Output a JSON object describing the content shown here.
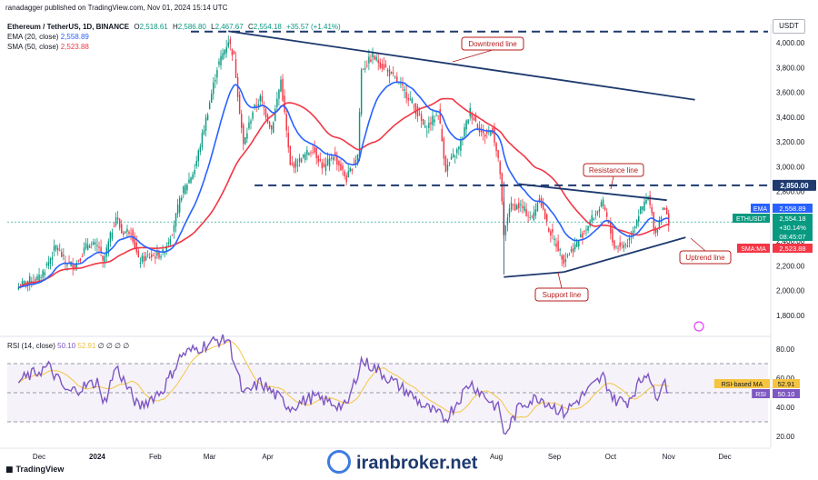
{
  "publish_line": "ranadagger published on TradingView.com, Nov 01, 2024 15:14 UTC",
  "legend": {
    "symbol": "Ethereum / TetherUS, 1D, BINANCE",
    "o_label": "O",
    "o": "2,518.61",
    "h_label": "H",
    "h": "2,586.80",
    "l_label": "L",
    "l": "2,467.67",
    "c_label": "C",
    "c": "2,554.18",
    "change": "+35.57 (+1.41%)",
    "ema_label": "EMA (20, close)",
    "ema": "2,558.89",
    "sma_label": "SMA (50, close)",
    "sma": "2,523.88"
  },
  "rsi_legend": {
    "label": "RSI (14, close)",
    "v1": "50.10",
    "v2": "52.91",
    "rest": "∅ ∅ ∅ ∅"
  },
  "currency": "USDT",
  "tradingview": "TradingView",
  "watermark": "iranbroker.net",
  "colors": {
    "up": "#089981",
    "down": "#f23645",
    "ema": "#2962ff",
    "sma": "#f23645",
    "trend": "#1e3a6e",
    "rsi": "#7e57c2"
  },
  "chart_data": {
    "type": "candlestick",
    "title": "Ethereum / TetherUS, 1D, BINANCE",
    "ylabel": "USDT",
    "y_ticks": [
      1800,
      2000,
      2200,
      2400,
      2600,
      2800,
      3000,
      3200,
      3400,
      3600,
      3800,
      4000
    ],
    "y_tick_labels": [
      "1,800.00",
      "2,000.00",
      "2,200.00",
      "2,400.00",
      "2,600.00",
      "2,800.00",
      "3,000.00",
      "3,200.00",
      "3,400.00",
      "3,600.00",
      "3,800.00",
      "4,000.00"
    ],
    "x_ticks": [
      {
        "label": "Dec",
        "date": "2023-12-01"
      },
      {
        "label": "2024",
        "date": "2024-01-01"
      },
      {
        "label": "Feb",
        "date": "2024-02-01"
      },
      {
        "label": "Mar",
        "date": "2024-03-01"
      },
      {
        "label": "Apr",
        "date": "2024-04-01"
      },
      {
        "label": "Aug",
        "date": "2024-08-01"
      },
      {
        "label": "Sep",
        "date": "2024-09-01"
      },
      {
        "label": "Oct",
        "date": "2024-10-01"
      },
      {
        "label": "Nov",
        "date": "2024-11-01"
      },
      {
        "label": "Dec",
        "date": "2024-12-01"
      }
    ],
    "horizontal_lines": [
      {
        "value": 4090
      },
      {
        "value": 2850,
        "label": "2,850.00"
      }
    ],
    "trendlines": [
      {
        "name": "Downtrend line",
        "from": [
          "2024-03-11",
          4093
        ],
        "to": [
          "2024-11-15",
          3540
        ]
      },
      {
        "name": "Resistance line",
        "from": [
          "2024-08-13",
          2860
        ],
        "to": [
          "2024-10-31",
          2730
        ]
      },
      {
        "name": "Support line",
        "from": [
          "2024-08-05",
          2110
        ],
        "to": [
          "2024-09-06",
          2150
        ]
      },
      {
        "name": "Uptrend line",
        "from": [
          "2024-09-06",
          2150
        ],
        "to": [
          "2024-11-10",
          2430
        ]
      }
    ],
    "annotations": [
      {
        "text": "Downtrend line"
      },
      {
        "text": "Resistance line"
      },
      {
        "text": "Uptrend line"
      },
      {
        "text": "Support line"
      }
    ],
    "price_tags": [
      {
        "label": "EMA",
        "value": "2,558.89"
      },
      {
        "label": "ETHUSDT",
        "value": "2,554.18"
      },
      {
        "label": "",
        "value": "+30.14%"
      },
      {
        "label": "",
        "value": "08:45:07"
      },
      {
        "label": "SMA:MA",
        "value": "2,523.88"
      }
    ],
    "price_key": [
      {
        "date": "2023-11-20",
        "c": 2030
      },
      {
        "date": "2023-11-25",
        "c": 2080
      },
      {
        "date": "2023-12-01",
        "c": 2100
      },
      {
        "date": "2023-12-06",
        "c": 2230
      },
      {
        "date": "2023-12-10",
        "c": 2360
      },
      {
        "date": "2023-12-15",
        "c": 2230
      },
      {
        "date": "2023-12-20",
        "c": 2200
      },
      {
        "date": "2023-12-27",
        "c": 2380
      },
      {
        "date": "2024-01-02",
        "c": 2350
      },
      {
        "date": "2024-01-04",
        "c": 2220
      },
      {
        "date": "2024-01-11",
        "c": 2600
      },
      {
        "date": "2024-01-14",
        "c": 2470
      },
      {
        "date": "2024-01-19",
        "c": 2490
      },
      {
        "date": "2024-01-23",
        "c": 2240
      },
      {
        "date": "2024-01-28",
        "c": 2270
      },
      {
        "date": "2024-02-05",
        "c": 2300
      },
      {
        "date": "2024-02-10",
        "c": 2480
      },
      {
        "date": "2024-02-15",
        "c": 2780
      },
      {
        "date": "2024-02-22",
        "c": 2980
      },
      {
        "date": "2024-02-28",
        "c": 3380
      },
      {
        "date": "2024-03-05",
        "c": 3800
      },
      {
        "date": "2024-03-11",
        "c": 4020
      },
      {
        "date": "2024-03-14",
        "c": 3880
      },
      {
        "date": "2024-03-19",
        "c": 3170
      },
      {
        "date": "2024-03-24",
        "c": 3450
      },
      {
        "date": "2024-03-28",
        "c": 3550
      },
      {
        "date": "2024-04-03",
        "c": 3300
      },
      {
        "date": "2024-04-08",
        "c": 3700
      },
      {
        "date": "2024-04-13",
        "c": 3000
      },
      {
        "date": "2024-04-18",
        "c": 3050
      },
      {
        "date": "2024-04-25",
        "c": 3150
      },
      {
        "date": "2024-05-01",
        "c": 2980
      },
      {
        "date": "2024-05-06",
        "c": 3100
      },
      {
        "date": "2024-05-13",
        "c": 2900
      },
      {
        "date": "2024-05-19",
        "c": 3100
      },
      {
        "date": "2024-05-21",
        "c": 3780
      },
      {
        "date": "2024-05-27",
        "c": 3890
      },
      {
        "date": "2024-06-03",
        "c": 3790
      },
      {
        "date": "2024-06-10",
        "c": 3670
      },
      {
        "date": "2024-06-17",
        "c": 3520
      },
      {
        "date": "2024-06-24",
        "c": 3300
      },
      {
        "date": "2024-07-01",
        "c": 3440
      },
      {
        "date": "2024-07-05",
        "c": 2980
      },
      {
        "date": "2024-07-12",
        "c": 3150
      },
      {
        "date": "2024-07-18",
        "c": 3450
      },
      {
        "date": "2024-07-25",
        "c": 3250
      },
      {
        "date": "2024-07-30",
        "c": 3300
      },
      {
        "date": "2024-08-03",
        "c": 2950
      },
      {
        "date": "2024-08-05",
        "c": 2430
      },
      {
        "date": "2024-08-08",
        "c": 2680
      },
      {
        "date": "2024-08-14",
        "c": 2680
      },
      {
        "date": "2024-08-20",
        "c": 2580
      },
      {
        "date": "2024-08-24",
        "c": 2760
      },
      {
        "date": "2024-08-28",
        "c": 2530
      },
      {
        "date": "2024-09-06",
        "c": 2250
      },
      {
        "date": "2024-09-12",
        "c": 2360
      },
      {
        "date": "2024-09-20",
        "c": 2560
      },
      {
        "date": "2024-09-27",
        "c": 2700
      },
      {
        "date": "2024-10-03",
        "c": 2350
      },
      {
        "date": "2024-10-10",
        "c": 2380
      },
      {
        "date": "2024-10-16",
        "c": 2620
      },
      {
        "date": "2024-10-21",
        "c": 2750
      },
      {
        "date": "2024-10-25",
        "c": 2460
      },
      {
        "date": "2024-10-29",
        "c": 2680
      },
      {
        "date": "2024-11-01",
        "c": 2554
      }
    ],
    "rsi": {
      "label": "RSI (14, close)",
      "value": 50.1,
      "ma_value": 52.91,
      "y_ticks": [
        20,
        40,
        60,
        80
      ],
      "band": [
        30,
        70
      ],
      "key": [
        {
          "date": "2023-11-20",
          "v": 58
        },
        {
          "date": "2023-12-06",
          "v": 68
        },
        {
          "date": "2023-12-16",
          "v": 50
        },
        {
          "date": "2024-01-02",
          "v": 58
        },
        {
          "date": "2024-01-04",
          "v": 40
        },
        {
          "date": "2024-01-11",
          "v": 68
        },
        {
          "date": "2024-01-23",
          "v": 40
        },
        {
          "date": "2024-02-05",
          "v": 52
        },
        {
          "date": "2024-02-15",
          "v": 76
        },
        {
          "date": "2024-03-05",
          "v": 86
        },
        {
          "date": "2024-03-11",
          "v": 87
        },
        {
          "date": "2024-03-19",
          "v": 48
        },
        {
          "date": "2024-03-28",
          "v": 57
        },
        {
          "date": "2024-04-13",
          "v": 40
        },
        {
          "date": "2024-04-25",
          "v": 47
        },
        {
          "date": "2024-05-13",
          "v": 40
        },
        {
          "date": "2024-05-21",
          "v": 72
        },
        {
          "date": "2024-05-27",
          "v": 68
        },
        {
          "date": "2024-06-17",
          "v": 48
        },
        {
          "date": "2024-06-24",
          "v": 40
        },
        {
          "date": "2024-07-05",
          "v": 32
        },
        {
          "date": "2024-07-18",
          "v": 57
        },
        {
          "date": "2024-08-03",
          "v": 38
        },
        {
          "date": "2024-08-05",
          "v": 20
        },
        {
          "date": "2024-08-14",
          "v": 42
        },
        {
          "date": "2024-08-24",
          "v": 47
        },
        {
          "date": "2024-09-06",
          "v": 36
        },
        {
          "date": "2024-09-27",
          "v": 61
        },
        {
          "date": "2024-10-03",
          "v": 45
        },
        {
          "date": "2024-10-10",
          "v": 44
        },
        {
          "date": "2024-10-21",
          "v": 66
        },
        {
          "date": "2024-10-25",
          "v": 45
        },
        {
          "date": "2024-10-29",
          "v": 60
        },
        {
          "date": "2024-11-01",
          "v": 50.1
        }
      ]
    }
  }
}
